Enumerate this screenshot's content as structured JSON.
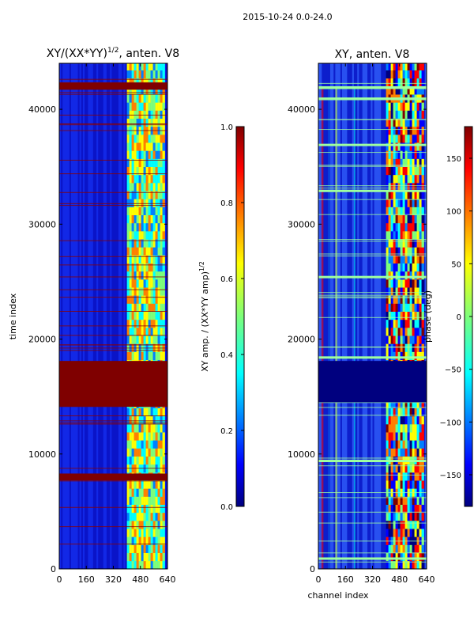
{
  "suptitle": "2015-10-24 0.0-24.0",
  "chart_data": [
    {
      "type": "heatmap",
      "title": "XY/(XX*YY)",
      "title_exponent": "1/2",
      "title_suffix": ", anten. V8",
      "xlabel": "",
      "ylabel": "time index",
      "xlim": [
        0,
        640
      ],
      "ylim": [
        0,
        44000
      ],
      "xticks": [
        0,
        160,
        320,
        480,
        640
      ],
      "yticks": [
        0,
        10000,
        20000,
        30000,
        40000
      ],
      "colorbar": {
        "label": "XY amp. / (XX*YY amp)",
        "label_exponent": "1/2",
        "range": [
          0.0,
          1.0
        ],
        "ticks": [
          "0.0",
          "0.2",
          "0.4",
          "0.6",
          "0.8",
          "1.0"
        ]
      },
      "features": {
        "background_value": 0.1,
        "active_channel_band": [
          400,
          620
        ],
        "flagged_time_block": [
          14500,
          18100
        ],
        "flagged_time_lines": [
          42000,
          8000,
          14400
        ]
      }
    },
    {
      "type": "heatmap",
      "title": "XY, anten. V8",
      "xlabel": "channel index",
      "ylabel": "",
      "xlim": [
        0,
        640
      ],
      "ylim": [
        0,
        44000
      ],
      "xticks": [
        0,
        160,
        320,
        480,
        640
      ],
      "yticks": [
        0,
        10000,
        20000,
        30000,
        40000
      ],
      "colorbar": {
        "label": "phase (deg)",
        "range": [
          -180,
          180
        ],
        "ticks": [
          "150",
          "100",
          "50",
          "0",
          "−50",
          "−100",
          "−150"
        ]
      },
      "features": {
        "background_value": -120,
        "active_channel_band": [
          400,
          620
        ],
        "flagged_time_block": [
          14500,
          18100
        ]
      }
    }
  ],
  "colors": {
    "jet_dark_blue": "#00007f",
    "jet_blue": "#0000ff",
    "jet_cyan": "#00ffff",
    "jet_yellow": "#ffff00",
    "jet_red": "#ff0000",
    "jet_dark_red": "#7f0000"
  }
}
